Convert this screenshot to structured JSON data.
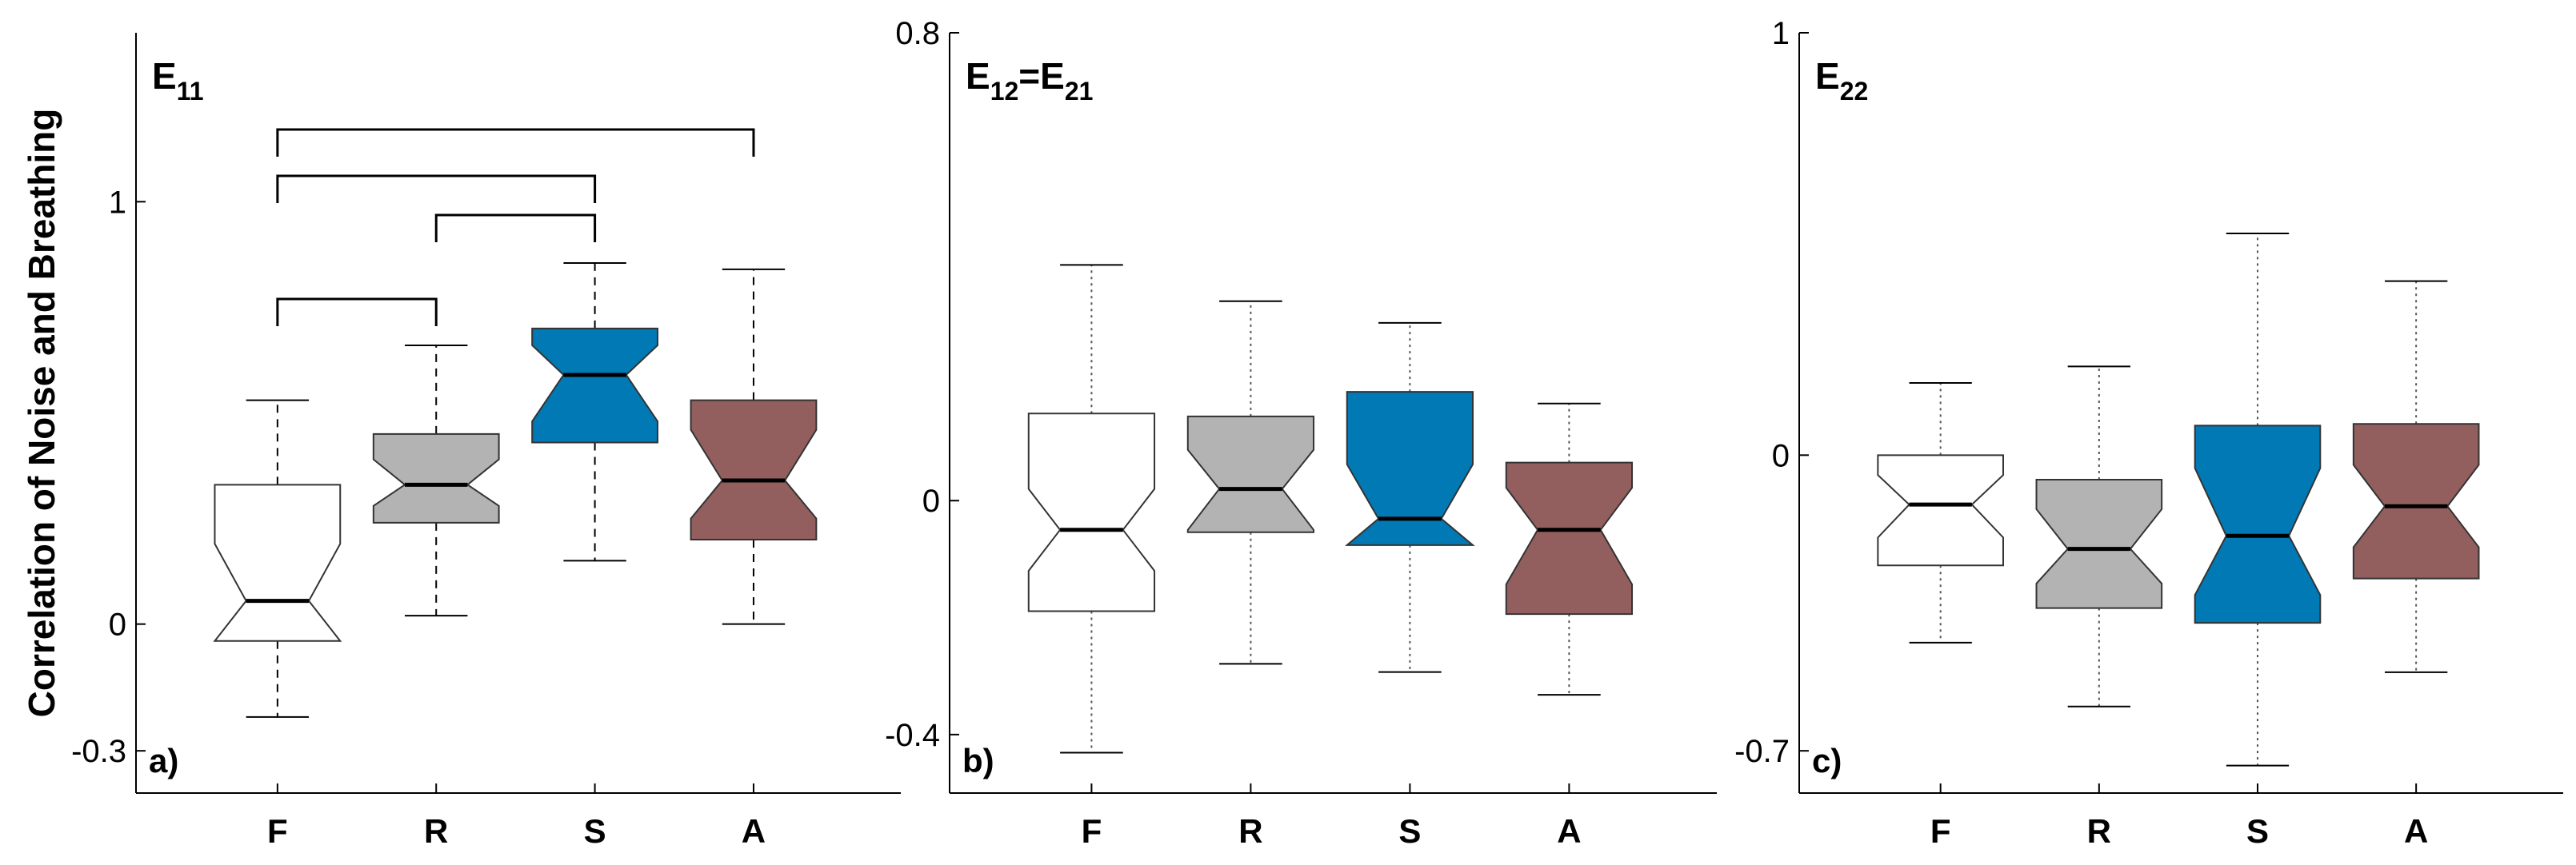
{
  "chart_data": [
    {
      "type": "boxplot",
      "title_parts": [
        {
          "text": "E"
        },
        {
          "text": "11",
          "sub": true
        }
      ],
      "panel_label": "a)",
      "ylabel": "Correlation of Noise and Breathing",
      "whisker_style": "dashed",
      "categories": [
        "F",
        "R",
        "S",
        "A"
      ],
      "colors": [
        "#ffffff",
        "#b3b3b3",
        "#0079b5",
        "#935f5e"
      ],
      "ylim": [
        -0.4,
        1.4
      ],
      "yticks": [
        -0.3,
        0,
        1
      ],
      "boxes": [
        {
          "whisker_low": -0.22,
          "q1": -0.04,
          "notch_low": -0.04,
          "median": 0.055,
          "notch_high": 0.19,
          "q3": 0.33,
          "whisker_high": 0.53
        },
        {
          "whisker_low": 0.02,
          "q1": 0.24,
          "notch_low": 0.28,
          "median": 0.33,
          "notch_high": 0.39,
          "q3": 0.45,
          "whisker_high": 0.66
        },
        {
          "whisker_low": 0.15,
          "q1": 0.43,
          "notch_low": 0.48,
          "median": 0.59,
          "notch_high": 0.66,
          "q3": 0.7,
          "whisker_high": 0.855
        },
        {
          "whisker_low": 0,
          "q1": 0.2,
          "notch_low": 0.25,
          "median": 0.34,
          "notch_high": 0.46,
          "q3": 0.53,
          "whisker_high": 0.84
        }
      ]
    },
    {
      "type": "boxplot",
      "title_parts": [
        {
          "text": "E"
        },
        {
          "text": "12",
          "sub": true
        },
        {
          "text": "=E"
        },
        {
          "text": "21",
          "sub": true
        }
      ],
      "panel_label": "b)",
      "whisker_style": "dotted",
      "categories": [
        "F",
        "R",
        "S",
        "A"
      ],
      "colors": [
        "#ffffff",
        "#b3b3b3",
        "#0079b5",
        "#935f5e"
      ],
      "ylim": [
        -0.5,
        0.8
      ],
      "yticks": [
        -0.4,
        0,
        0.8
      ],
      "boxes": [
        {
          "whisker_low": -0.431,
          "q1": -0.189,
          "notch_low": -0.12,
          "median": -0.05,
          "notch_high": 0.02,
          "q3": 0.149,
          "whisker_high": 0.403
        },
        {
          "whisker_low": -0.279,
          "q1": -0.054,
          "notch_low": -0.05,
          "median": 0.02,
          "notch_high": 0.087,
          "q3": 0.144,
          "whisker_high": 0.341
        },
        {
          "whisker_low": -0.293,
          "q1": -0.076,
          "notch_low": -0.076,
          "median": -0.031,
          "notch_high": 0.062,
          "q3": 0.186,
          "whisker_high": 0.304
        },
        {
          "whisker_low": -0.332,
          "q1": -0.194,
          "notch_low": -0.143,
          "median": -0.05,
          "notch_high": 0.022,
          "q3": 0.065,
          "whisker_high": 0.166
        }
      ]
    },
    {
      "type": "boxplot",
      "title_parts": [
        {
          "text": "E"
        },
        {
          "text": "22",
          "sub": true
        }
      ],
      "panel_label": "c)",
      "whisker_style": "dotted",
      "categories": [
        "F",
        "R",
        "S",
        "A"
      ],
      "colors": [
        "#ffffff",
        "#b3b3b3",
        "#0079b5",
        "#935f5e"
      ],
      "ylim": [
        -0.8,
        1
      ],
      "yticks": [
        -0.7,
        0,
        1
      ],
      "boxes": [
        {
          "whisker_low": -0.444,
          "q1": -0.261,
          "notch_low": -0.195,
          "median": -0.117,
          "notch_high": -0.047,
          "q3": 0,
          "whisker_high": 0.171
        },
        {
          "whisker_low": -0.595,
          "q1": -0.362,
          "notch_low": -0.304,
          "median": -0.222,
          "notch_high": -0.128,
          "q3": -0.058,
          "whisker_high": 0.21
        },
        {
          "whisker_low": -0.735,
          "q1": -0.397,
          "notch_low": -0.331,
          "median": -0.191,
          "notch_high": -0.031,
          "q3": 0.07,
          "whisker_high": 0.525
        },
        {
          "whisker_low": -0.514,
          "q1": -0.292,
          "notch_low": -0.218,
          "median": -0.121,
          "notch_high": -0.023,
          "q3": 0.074,
          "whisker_high": 0.412
        }
      ]
    }
  ]
}
